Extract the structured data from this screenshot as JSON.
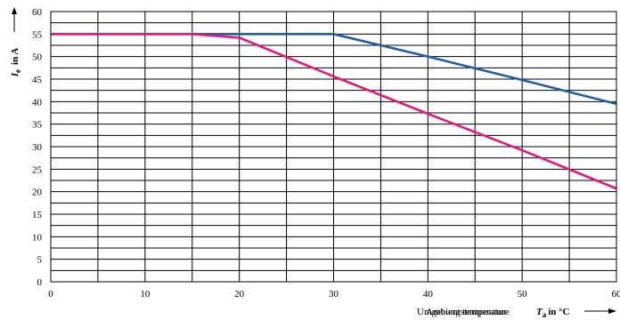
{
  "chart_data": {
    "type": "line",
    "xlabel_overlap": [
      "Umgebungstemperatur",
      "Ambient temperature"
    ],
    "xlabel_symbol": "T",
    "xlabel_symbol_sub": "a",
    "xlabel_unit": "in °C",
    "ylabel_symbol": "I",
    "ylabel_symbol_sub": "e",
    "ylabel_unit": "in A",
    "xlim": [
      0,
      60
    ],
    "ylim": [
      0,
      60
    ],
    "x_ticks": [
      0,
      10,
      20,
      30,
      40,
      50,
      60
    ],
    "y_ticks": [
      0,
      5,
      10,
      15,
      20,
      25,
      30,
      35,
      40,
      45,
      50,
      55,
      60
    ],
    "grid": true,
    "series": [
      {
        "color": "#1f5fa5",
        "x": [
          0,
          15,
          30,
          40,
          50,
          60
        ],
        "y": [
          55,
          55,
          55,
          50,
          44.8,
          39.5
        ]
      },
      {
        "color": "#e0197d",
        "x": [
          0,
          15,
          20,
          30,
          40,
          50,
          60
        ],
        "y": [
          55,
          55,
          54.2,
          45.6,
          37.3,
          29.2,
          20.7
        ]
      }
    ]
  }
}
